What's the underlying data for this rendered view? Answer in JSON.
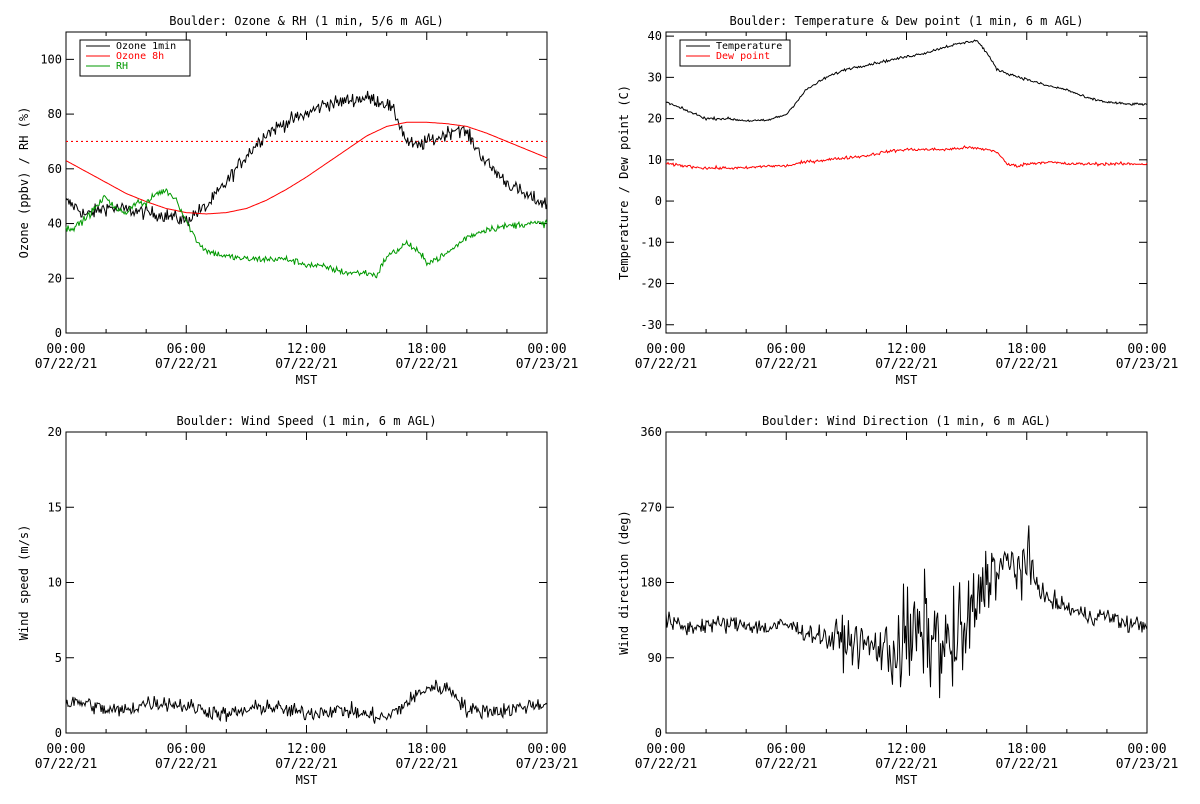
{
  "x_axis": {
    "label": "MST",
    "ticks": [
      {
        "time": "00:00",
        "date": "07/22/21",
        "hour": 0
      },
      {
        "time": "06:00",
        "date": "07/22/21",
        "hour": 6
      },
      {
        "time": "12:00",
        "date": "07/22/21",
        "hour": 12
      },
      {
        "time": "18:00",
        "date": "07/22/21",
        "hour": 18
      },
      {
        "time": "00:00",
        "date": "07/23/21",
        "hour": 24
      }
    ],
    "range_hours": [
      0,
      24
    ]
  },
  "chart_data": [
    {
      "type": "line",
      "title": "Boulder: Ozone & RH (1 min, 5/6 m AGL)",
      "xlabel": "MST",
      "ylabel": "Ozone (ppbv) / RH (%)",
      "ylim": [
        0,
        110
      ],
      "yticks": [
        0,
        20,
        40,
        60,
        80,
        100
      ],
      "legend_position": "top-left",
      "reference_line": {
        "y": 70,
        "color": "#ff0000",
        "style": "dotted"
      },
      "series": [
        {
          "name": "Ozone 1min",
          "color": "#000000",
          "noise": 2.5,
          "x": [
            0,
            0.5,
            1,
            2,
            3,
            4,
            5,
            6,
            6.5,
            7,
            8,
            9,
            10,
            11,
            12,
            13,
            13.5,
            14,
            15,
            16,
            16.5,
            17,
            17.5,
            18,
            18.5,
            19,
            19.5,
            20,
            21,
            22,
            23,
            24
          ],
          "y": [
            48,
            46,
            43,
            46,
            45,
            44,
            43,
            41,
            44,
            46,
            55,
            65,
            73,
            77,
            80,
            84,
            84,
            85,
            86,
            84,
            79,
            70,
            68,
            70,
            71,
            73,
            75,
            73,
            62,
            55,
            50,
            47
          ]
        },
        {
          "name": "Ozone 8h",
          "color": "#ff0000",
          "noise": 0,
          "x": [
            0,
            1,
            2,
            3,
            4,
            5,
            6,
            7,
            8,
            9,
            10,
            11,
            12,
            13,
            14,
            15,
            16,
            17,
            18,
            19,
            20,
            21,
            22,
            23,
            24
          ],
          "y": [
            63,
            59,
            55,
            51,
            48,
            45.5,
            44,
            43.5,
            44,
            45.5,
            48.5,
            52.5,
            57,
            62,
            67,
            72,
            75.5,
            77,
            77,
            76.5,
            75.5,
            73,
            70,
            67,
            64
          ]
        },
        {
          "name": "RH",
          "color": "#009900",
          "noise": 1.2,
          "x": [
            0,
            0.5,
            1,
            1.5,
            2,
            2.5,
            3,
            3.5,
            4,
            4.5,
            5,
            5.5,
            6,
            6.5,
            7,
            8,
            9,
            10,
            11,
            12,
            13,
            14,
            15,
            15.5,
            16,
            16.5,
            17,
            17.5,
            18,
            18.5,
            19,
            19.5,
            20,
            21,
            22,
            23,
            24
          ],
          "y": [
            38,
            39,
            42,
            46,
            50,
            45,
            44,
            48,
            47,
            51,
            52,
            49,
            41,
            34,
            30,
            28,
            27,
            27,
            27,
            25,
            24,
            22,
            22,
            21,
            28,
            30,
            33,
            30,
            26,
            27,
            29,
            32,
            35,
            38,
            39,
            40,
            40
          ]
        }
      ]
    },
    {
      "type": "line",
      "title": "Boulder: Temperature & Dew point (1 min, 6 m AGL)",
      "xlabel": "MST",
      "ylabel": "Temperature / Dew point (C)",
      "ylim": [
        -32,
        41
      ],
      "yticks": [
        -30,
        -20,
        -10,
        0,
        10,
        20,
        30,
        40
      ],
      "legend_position": "top-left",
      "series": [
        {
          "name": "Temperature",
          "color": "#000000",
          "noise": 0.3,
          "x": [
            0,
            1,
            2,
            3,
            4,
            5,
            6,
            6.5,
            7,
            8,
            9,
            10,
            11,
            12,
            13,
            14,
            15,
            15.5,
            16,
            16.5,
            17,
            18,
            19,
            20,
            21,
            22,
            23,
            24
          ],
          "y": [
            24,
            22,
            20,
            20,
            19.5,
            19.5,
            21,
            24,
            27,
            30,
            32,
            33,
            34,
            35,
            36,
            37.5,
            38.5,
            39,
            36,
            32,
            31,
            29.5,
            28,
            27,
            25,
            24,
            23.5,
            23.5
          ]
        },
        {
          "name": "Dew point",
          "color": "#ff0000",
          "noise": 0.35,
          "x": [
            0,
            1,
            2,
            3,
            4,
            5,
            6,
            7,
            8,
            9,
            10,
            11,
            12,
            13,
            14,
            15,
            16,
            16.5,
            17,
            17.5,
            18,
            19,
            20,
            21,
            22,
            23,
            24
          ],
          "y": [
            9,
            8.5,
            8,
            8,
            8,
            8.5,
            8.5,
            9.5,
            10,
            10.5,
            11,
            12,
            12.5,
            12.5,
            12.5,
            13,
            12.5,
            12,
            9,
            8.5,
            9,
            9.5,
            9,
            9,
            9,
            9,
            9
          ]
        }
      ]
    },
    {
      "type": "line",
      "title": "Boulder: Wind Speed (1 min, 6 m AGL)",
      "xlabel": "MST",
      "ylabel": "Wind speed (m/s)",
      "ylim": [
        0,
        20
      ],
      "yticks": [
        0,
        5,
        10,
        15,
        20
      ],
      "series": [
        {
          "name": "",
          "color": "#000000",
          "noise": 0.5,
          "x": [
            0,
            1,
            2,
            3,
            4,
            5,
            6,
            7,
            8,
            9,
            10,
            11,
            12,
            13,
            14,
            15,
            16,
            17,
            17.5,
            18,
            19,
            19.5,
            20,
            21,
            22,
            23,
            24
          ],
          "y": [
            2,
            2,
            1.5,
            1.5,
            2,
            2,
            1.8,
            1.5,
            1.2,
            1.5,
            1.8,
            1.5,
            1.3,
            1.5,
            1.5,
            1.2,
            1,
            2,
            2.5,
            3,
            3,
            2.5,
            1.5,
            1.5,
            1.5,
            1.8,
            2
          ]
        }
      ]
    },
    {
      "type": "line",
      "title": "Boulder: Wind Direction (1 min, 6 m AGL)",
      "xlabel": "MST",
      "ylabel": "Wind direction (deg)",
      "ylim": [
        0,
        360
      ],
      "yticks": [
        0,
        90,
        180,
        270,
        360
      ],
      "series": [
        {
          "name": "",
          "color": "#000000",
          "noise": 10,
          "x": [
            0,
            1,
            2,
            3,
            4,
            5,
            6,
            7,
            8,
            9,
            10,
            11,
            12,
            13,
            14,
            15,
            16,
            17,
            18,
            19,
            20,
            21,
            22,
            23,
            24
          ],
          "y": [
            135,
            125,
            130,
            130,
            130,
            125,
            130,
            120,
            115,
            110,
            105,
            100,
            110,
            120,
            100,
            120,
            190,
            200,
            200,
            160,
            150,
            140,
            140,
            130,
            130
          ],
          "volatility": [
            [
              8,
              11,
              25
            ],
            [
              11,
              15.5,
              60
            ],
            [
              15.5,
              18.5,
              35
            ]
          ]
        }
      ]
    }
  ]
}
